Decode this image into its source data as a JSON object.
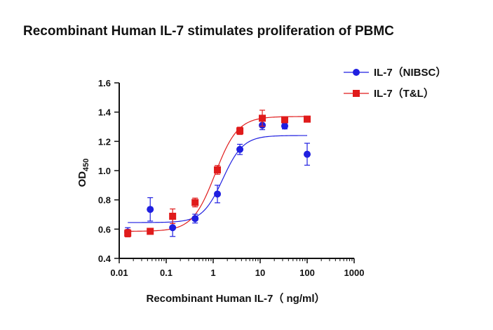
{
  "chart_data": {
    "type": "scatter",
    "title": "Recombinant Human IL-7 stimulates proliferation of PBMC",
    "xlabel": "Recombinant Human IL-7（ ng/ml）",
    "ylabel_main": "OD",
    "ylabel_sub": "450",
    "xscale": "log",
    "xlim": [
      0.01,
      1000
    ],
    "ylim": [
      0.4,
      1.6
    ],
    "x_ticks": [
      "0.01",
      "0.1",
      "1",
      "10",
      "100",
      "1000"
    ],
    "y_ticks": [
      "0.4",
      "0.6",
      "0.8",
      "1.0",
      "1.2",
      "1.4",
      "1.6"
    ],
    "grid": false,
    "legend_position": "top-right",
    "series": [
      {
        "name": "IL-7（NIBSC）",
        "color": "#1f1fe0",
        "marker": "circle",
        "x": [
          0.0152,
          0.0457,
          0.137,
          0.412,
          1.23,
          3.7,
          11.1,
          33.3,
          100
        ],
        "y": [
          0.58,
          0.735,
          0.61,
          0.672,
          0.84,
          1.145,
          1.31,
          1.305,
          1.112
        ],
        "err": [
          0.03,
          0.08,
          0.06,
          0.03,
          0.06,
          0.035,
          0.03,
          0.02,
          0.075
        ],
        "curve": {
          "bottom": 0.645,
          "top": 1.24,
          "ec50": 1.6,
          "hill": 2.0
        }
      },
      {
        "name": "IL-7（T&L）",
        "color": "#e01b1b",
        "marker": "square",
        "x": [
          0.0152,
          0.0457,
          0.137,
          0.412,
          1.23,
          3.7,
          11.1,
          33.3,
          100
        ],
        "y": [
          0.572,
          0.585,
          0.688,
          0.782,
          1.005,
          1.272,
          1.358,
          1.348,
          1.352
        ],
        "err": [
          0.025,
          0.01,
          0.05,
          0.03,
          0.03,
          0.025,
          0.055,
          0.015,
          0.02
        ],
        "curve": {
          "bottom": 0.585,
          "top": 1.37,
          "ec50": 1.1,
          "hill": 1.8
        }
      }
    ]
  }
}
